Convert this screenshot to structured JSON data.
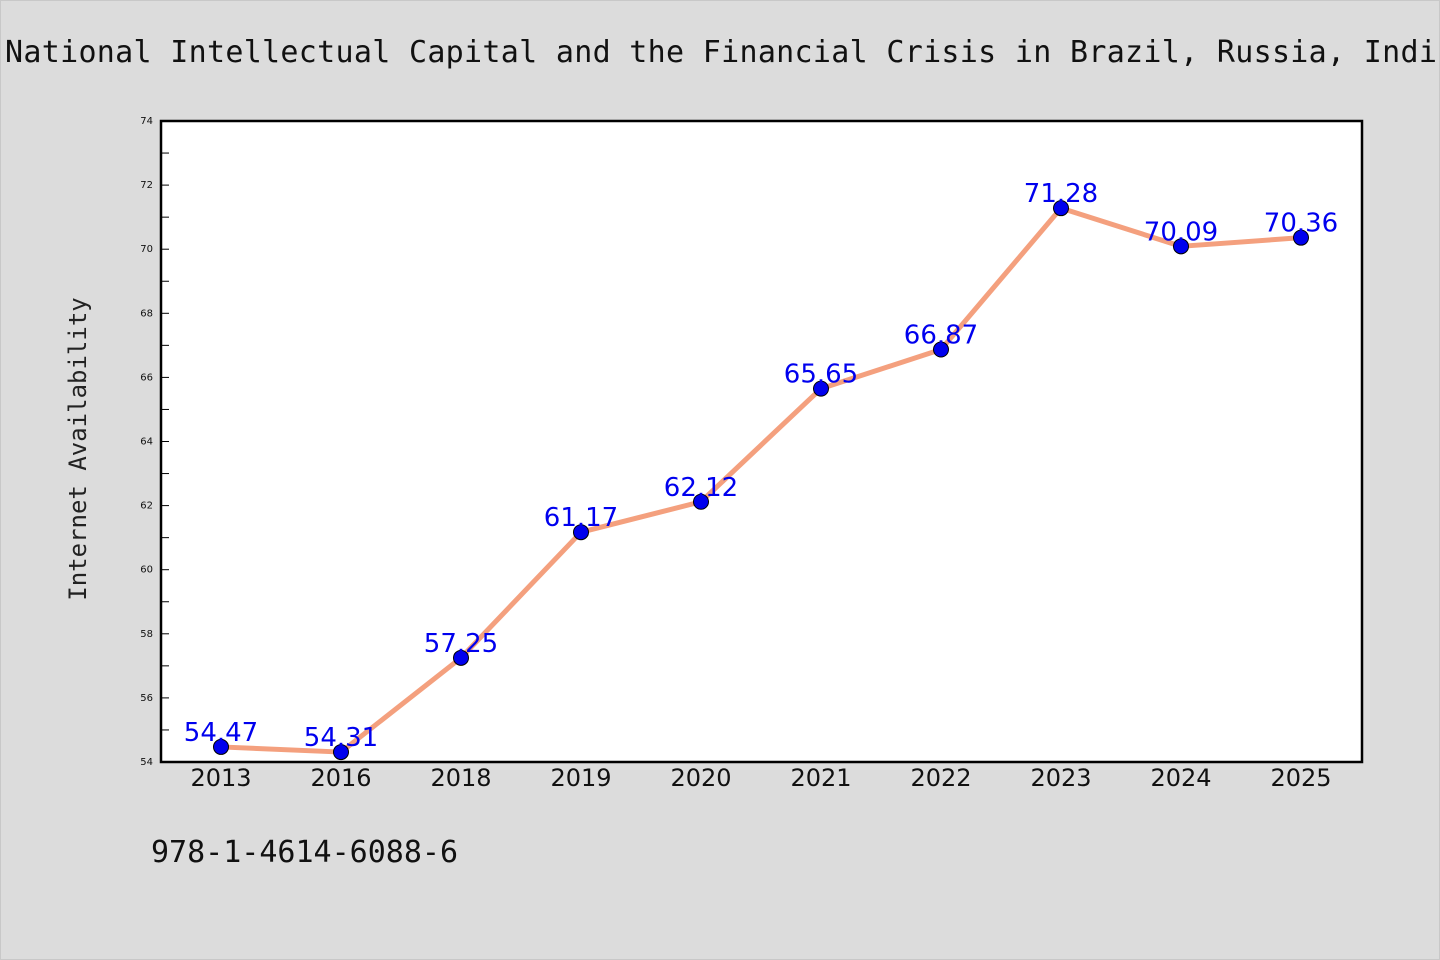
{
  "title": "National Intellectual Capital and the Financial Crisis in Brazil, Russia, India,",
  "footer_text": "978-1-4614-6088-6",
  "colors": {
    "background": "#dcdcdc",
    "plot_background": "#ffffff",
    "line": "#f4a07e",
    "marker": "#0000ee",
    "data_label": "#0000ee",
    "axis": "#000000"
  },
  "chart_data": {
    "type": "line",
    "title": "National Intellectual Capital and the Financial Crisis in Brazil, Russia, India,",
    "xlabel": "",
    "ylabel": "Internet Availability",
    "categories": [
      "2013",
      "2016",
      "2018",
      "2019",
      "2020",
      "2021",
      "2022",
      "2023",
      "2024",
      "2025"
    ],
    "series": [
      {
        "values": [
          54.47,
          54.31,
          57.25,
          61.17,
          62.12,
          65.65,
          66.87,
          71.28,
          70.09,
          70.36
        ],
        "labels": [
          "54.47",
          "54.31",
          "57.25",
          "61.17",
          "62.12",
          "65.65",
          "66.87",
          "71.28",
          "70.09",
          "70.36"
        ]
      }
    ],
    "ylim": [
      54,
      74
    ],
    "yticks": [
      54,
      56,
      58,
      60,
      62,
      64,
      66,
      68,
      70,
      72,
      74
    ],
    "grid": false,
    "legend": "none"
  }
}
